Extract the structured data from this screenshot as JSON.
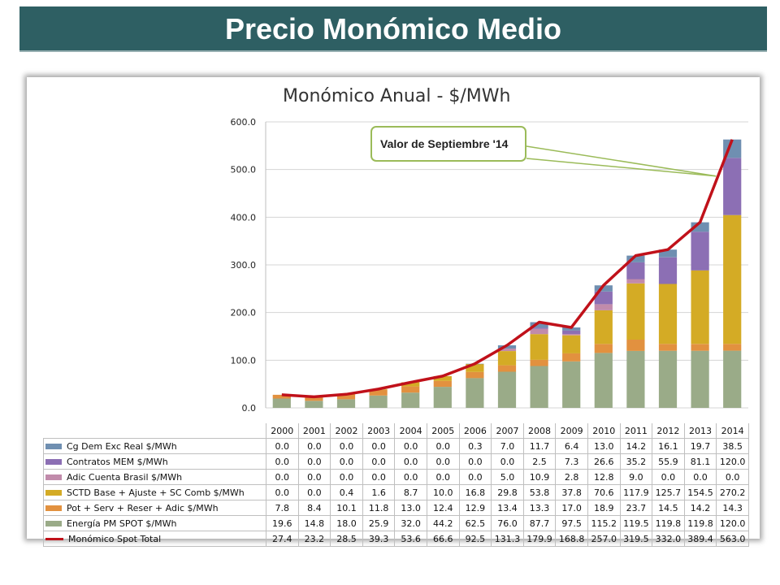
{
  "slide": {
    "title": "Precio Monómico Medio"
  },
  "chart_data": {
    "type": "bar",
    "stacked": true,
    "title": "Monómico Anual - $/MWh",
    "annotation": "Valor de Septiembre '14",
    "ylim": [
      0,
      600
    ],
    "y_ticks": [
      "0.0",
      "100.0",
      "200.0",
      "300.0",
      "400.0",
      "500.0",
      "600.0"
    ],
    "grid": true,
    "legend": "table-below",
    "categories": [
      "2000",
      "2001",
      "2002",
      "2003",
      "2004",
      "2005",
      "2006",
      "2007",
      "2008",
      "2009",
      "2010",
      "2011",
      "2012",
      "2013",
      "2014"
    ],
    "series": [
      {
        "name": "Energía PM SPOT $/MWh",
        "color": "#9aab88",
        "values": [
          "19.6",
          "14.8",
          "18.0",
          "25.9",
          "32.0",
          "44.2",
          "62.5",
          "76.0",
          "87.7",
          "97.5",
          "115.2",
          "119.5",
          "119.8",
          "119.8",
          "120.0"
        ]
      },
      {
        "name": "Pot + Serv + Reser + Adic $/MWh",
        "color": "#e2913f",
        "values": [
          "7.8",
          "8.4",
          "10.1",
          "11.8",
          "13.0",
          "12.4",
          "12.9",
          "13.4",
          "13.3",
          "17.0",
          "18.9",
          "23.7",
          "14.5",
          "14.2",
          "14.3"
        ]
      },
      {
        "name": "SCTD Base + Ajuste + SC Comb $/MWh",
        "color": "#d4ab25",
        "values": [
          "0.0",
          "0.0",
          "0.4",
          "1.6",
          "8.7",
          "10.0",
          "16.8",
          "29.8",
          "53.8",
          "37.8",
          "70.6",
          "117.9",
          "125.7",
          "154.5",
          "270.2"
        ]
      },
      {
        "name": "Adic Cuenta Brasil $/MWh",
        "color": "#c18bab",
        "values": [
          "0.0",
          "0.0",
          "0.0",
          "0.0",
          "0.0",
          "0.0",
          "0.0",
          "5.0",
          "10.9",
          "2.8",
          "12.8",
          "9.0",
          "0.0",
          "0.0",
          "0.0"
        ]
      },
      {
        "name": "Contratos MEM $/MWh",
        "color": "#8c6fb4",
        "values": [
          "0.0",
          "0.0",
          "0.0",
          "0.0",
          "0.0",
          "0.0",
          "0.0",
          "0.0",
          "2.5",
          "7.3",
          "26.6",
          "35.2",
          "55.9",
          "81.1",
          "120.0"
        ]
      },
      {
        "name": "Cg Dem Exc Real $/MWh",
        "color": "#6f8fb1",
        "values": [
          "0.0",
          "0.0",
          "0.0",
          "0.0",
          "0.0",
          "0.0",
          "0.3",
          "7.0",
          "11.7",
          "6.4",
          "13.0",
          "14.2",
          "16.1",
          "19.7",
          "38.5"
        ]
      }
    ],
    "line_series": {
      "name": "Monómico Spot Total",
      "color": "#c0111a",
      "values": [
        "27.4",
        "23.2",
        "28.5",
        "39.3",
        "53.6",
        "66.6",
        "92.5",
        "131.3",
        "179.9",
        "168.8",
        "257.0",
        "319.5",
        "332.0",
        "389.4",
        "563.0"
      ]
    },
    "table_rows": [
      {
        "name": "Cg Dem Exc Real $/MWh",
        "color": "#6f8fb1",
        "marker": "box",
        "values": [
          "0.0",
          "0.0",
          "0.0",
          "0.0",
          "0.0",
          "0.0",
          "0.3",
          "7.0",
          "11.7",
          "6.4",
          "13.0",
          "14.2",
          "16.1",
          "19.7",
          "38.5"
        ]
      },
      {
        "name": "Contratos MEM $/MWh",
        "color": "#8c6fb4",
        "marker": "box",
        "values": [
          "0.0",
          "0.0",
          "0.0",
          "0.0",
          "0.0",
          "0.0",
          "0.0",
          "0.0",
          "2.5",
          "7.3",
          "26.6",
          "35.2",
          "55.9",
          "81.1",
          "120.0"
        ]
      },
      {
        "name": "Adic Cuenta Brasil $/MWh",
        "color": "#c18bab",
        "marker": "box",
        "values": [
          "0.0",
          "0.0",
          "0.0",
          "0.0",
          "0.0",
          "0.0",
          "0.0",
          "5.0",
          "10.9",
          "2.8",
          "12.8",
          "9.0",
          "0.0",
          "0.0",
          "0.0"
        ]
      },
      {
        "name": "SCTD Base + Ajuste + SC Comb $/MWh",
        "color": "#d4ab25",
        "marker": "box",
        "values": [
          "0.0",
          "0.0",
          "0.4",
          "1.6",
          "8.7",
          "10.0",
          "16.8",
          "29.8",
          "53.8",
          "37.8",
          "70.6",
          "117.9",
          "125.7",
          "154.5",
          "270.2"
        ]
      },
      {
        "name": "Pot + Serv + Reser + Adic $/MWh",
        "color": "#e2913f",
        "marker": "box",
        "values": [
          "7.8",
          "8.4",
          "10.1",
          "11.8",
          "13.0",
          "12.4",
          "12.9",
          "13.4",
          "13.3",
          "17.0",
          "18.9",
          "23.7",
          "14.5",
          "14.2",
          "14.3"
        ]
      },
      {
        "name": "Energía PM SPOT $/MWh",
        "color": "#9aab88",
        "marker": "box",
        "values": [
          "19.6",
          "14.8",
          "18.0",
          "25.9",
          "32.0",
          "44.2",
          "62.5",
          "76.0",
          "87.7",
          "97.5",
          "115.2",
          "119.5",
          "119.8",
          "119.8",
          "120.0"
        ]
      },
      {
        "name": "Monómico Spot Total",
        "color": "#c0111a",
        "marker": "line",
        "values": [
          "27.4",
          "23.2",
          "28.5",
          "39.3",
          "53.6",
          "66.6",
          "92.5",
          "131.3",
          "179.9",
          "168.8",
          "257.0",
          "319.5",
          "332.0",
          "389.4",
          "563.0"
        ]
      }
    ]
  }
}
